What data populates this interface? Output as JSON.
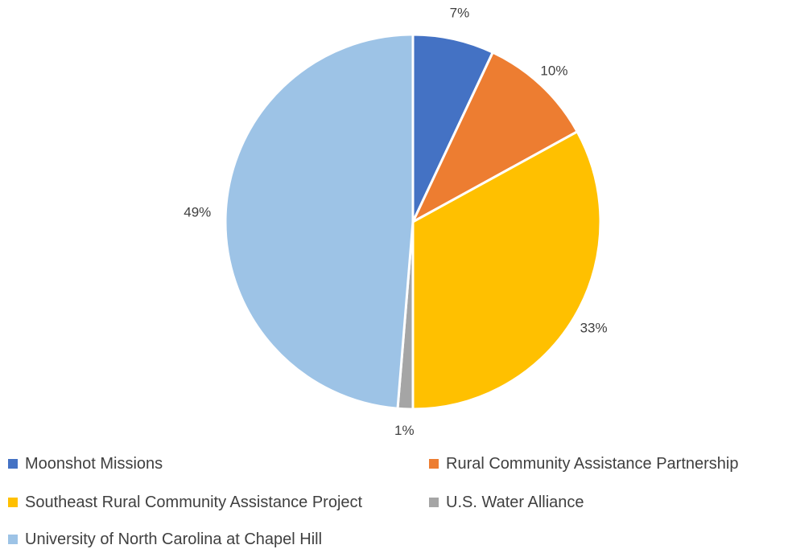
{
  "chart_data": {
    "type": "pie",
    "title": "",
    "start_angle_deg": 0,
    "direction": "clockwise",
    "slices": [
      {
        "name": "Moonshot Missions",
        "value": 7,
        "label": "7%",
        "color": "#4472C4"
      },
      {
        "name": "Rural Community Assistance Partnership",
        "value": 10,
        "label": "10%",
        "color": "#ED7D31"
      },
      {
        "name": "Southeast Rural Community Assistance Project",
        "value": 33,
        "label": "33%",
        "color": "#FFC000"
      },
      {
        "name": "U.S. Water Alliance",
        "value": 1.3,
        "label": "1%",
        "color": "#A5A5A5"
      },
      {
        "name": "University of North Carolina at Chapel Hill",
        "value": 48.7,
        "label": "49%",
        "color": "#9DC3E6"
      }
    ],
    "legend_position": "bottom"
  }
}
